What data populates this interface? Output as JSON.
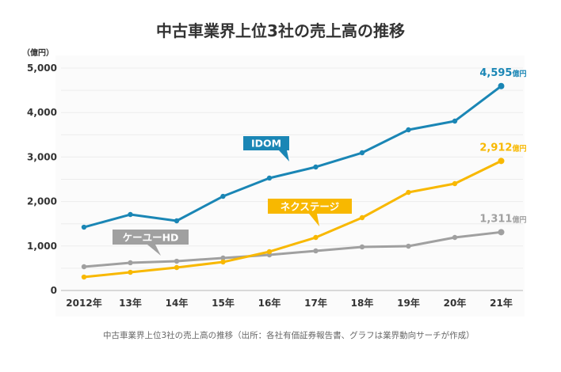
{
  "chart_data": {
    "type": "line",
    "title": "中古車業界上位3社の売上高の推移",
    "ylabel": "（億円）",
    "xlabel": "",
    "ylim": [
      0,
      5000
    ],
    "yticks": [
      0,
      1000,
      2000,
      3000,
      4000,
      5000
    ],
    "ytick_labels": [
      "0",
      "1,000",
      "2,000",
      "3,000",
      "4,000",
      "5,000"
    ],
    "grid": true,
    "categories": [
      "2012年",
      "13年",
      "14年",
      "15年",
      "16年",
      "17年",
      "18年",
      "19年",
      "20年",
      "21年"
    ],
    "series": [
      {
        "name": "IDOM",
        "color": "#1a86b5",
        "values": [
          1423,
          1708,
          1566,
          2117,
          2527,
          2776,
          3096,
          3612,
          3808,
          4595
        ],
        "end_label": "4,595",
        "end_unit": "億円"
      },
      {
        "name": "ネクステージ",
        "color": "#f8b800",
        "values": [
          302,
          409,
          516,
          640,
          872,
          1192,
          1637,
          2206,
          2402,
          2912
        ],
        "end_label": "2,912",
        "end_unit": "億円"
      },
      {
        "name": "ケーユーHD",
        "color": "#a0a0a0",
        "values": [
          534,
          623,
          658,
          730,
          800,
          890,
          979,
          996,
          1192,
          1311
        ],
        "end_label": "1,311",
        "end_unit": "億円"
      }
    ],
    "caption": "中古車業界上位3社の売上高の推移（出所：各社有価証券報告書、グラフは業界動向サーチが作成）"
  }
}
